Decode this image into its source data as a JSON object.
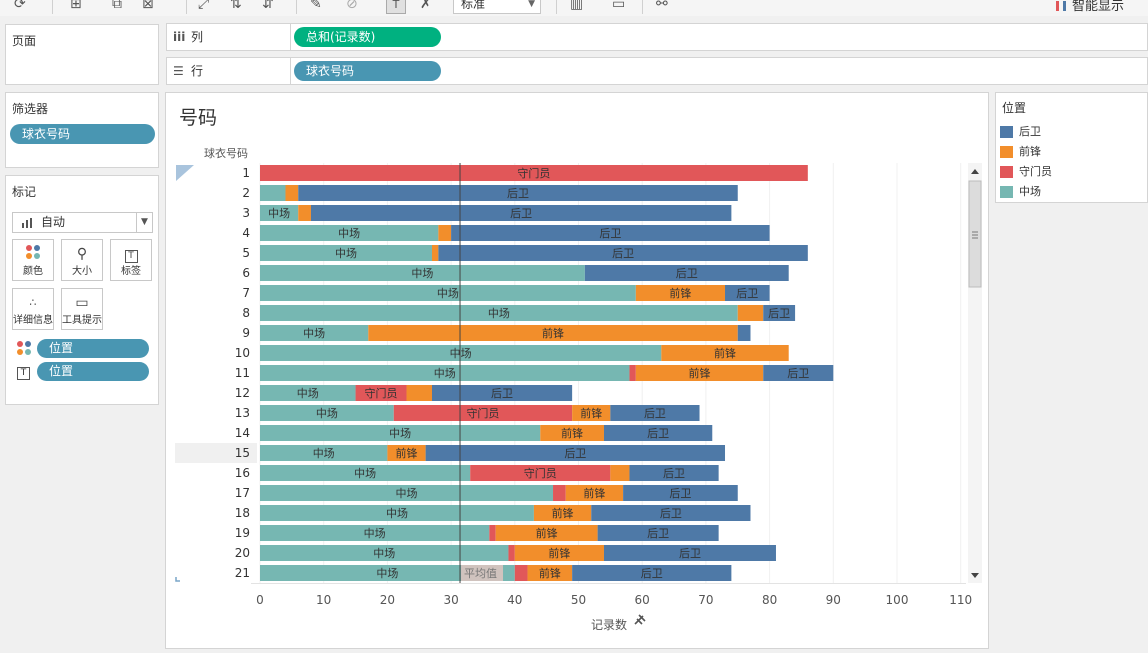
{
  "toolbar": {
    "fit_value": "标准",
    "show_me_label": "智能显示"
  },
  "pages_panel": {
    "title": "页面"
  },
  "filters_panel": {
    "title": "筛选器",
    "pill": "球衣号码"
  },
  "marks_panel": {
    "title": "标记",
    "mark_type": "自动",
    "buttons": {
      "color": "颜色",
      "size": "大小",
      "label": "标签",
      "detail": "详细信息",
      "tooltip": "工具提示"
    },
    "fields": {
      "color_field": "位置",
      "label_field": "位置"
    }
  },
  "columns_shelf": {
    "label": "列",
    "pill": "总和(记录数)"
  },
  "rows_shelf": {
    "label": "行",
    "pill": "球衣号码"
  },
  "view": {
    "title": "号码"
  },
  "legend": {
    "title": "位置",
    "items": [
      {
        "label": "后卫",
        "color": "#4e79a7"
      },
      {
        "label": "前锋",
        "color": "#f28e2b"
      },
      {
        "label": "守门员",
        "color": "#e15759"
      },
      {
        "label": "中场",
        "color": "#76b7b2"
      }
    ]
  },
  "chart_data": {
    "type": "bar",
    "orientation": "horizontal",
    "stacked": true,
    "title": "号码",
    "ylabel": "球衣号码",
    "xlabel": "记录数",
    "xlim": [
      0,
      110
    ],
    "xticks": [
      0,
      10,
      20,
      30,
      40,
      50,
      60,
      70,
      80,
      90,
      100,
      110
    ],
    "categories": [
      "1",
      "2",
      "3",
      "4",
      "5",
      "6",
      "7",
      "8",
      "9",
      "10",
      "11",
      "12",
      "13",
      "14",
      "15",
      "16",
      "17",
      "18",
      "19",
      "20",
      "21"
    ],
    "highlighted_category": "15",
    "series_order": [
      "中场",
      "守门员",
      "前锋",
      "后卫"
    ],
    "series": [
      {
        "name": "中场",
        "values": [
          0,
          4,
          6,
          28,
          27,
          51,
          59,
          75,
          17,
          63,
          58,
          15,
          21,
          44,
          20,
          33,
          46,
          43,
          36,
          39,
          40
        ]
      },
      {
        "name": "守门员",
        "values": [
          86,
          0,
          0,
          0,
          0,
          0,
          0,
          0,
          0,
          0,
          1,
          8,
          28,
          0,
          0,
          22,
          2,
          0,
          1,
          1,
          2
        ]
      },
      {
        "name": "前锋",
        "values": [
          0,
          2,
          2,
          2,
          1,
          0,
          14,
          4,
          58,
          20,
          20,
          4,
          6,
          10,
          6,
          3,
          9,
          9,
          16,
          14,
          7
        ]
      },
      {
        "name": "后卫",
        "values": [
          0,
          69,
          66,
          50,
          58,
          32,
          7,
          5,
          2,
          0,
          11,
          22,
          14,
          17,
          47,
          14,
          18,
          25,
          19,
          27,
          25
        ]
      }
    ],
    "reference_line": {
      "label": "平均值",
      "value": 31.4
    }
  }
}
